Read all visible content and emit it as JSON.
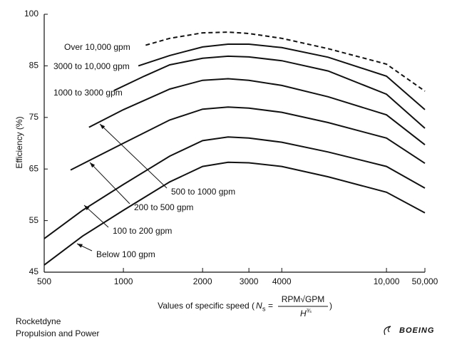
{
  "chart_data": {
    "type": "line",
    "ylabel": "Efficiency (%)",
    "xlabel": "Values of specific speed (",
    "formula": {
      "symbol": "N",
      "sub": "s",
      "eq": "=",
      "num": "RPM√GPM",
      "den": "H",
      "den_exp": "¾",
      "close": ")"
    },
    "xscale": "log",
    "xlim": [
      500,
      50000
    ],
    "xbreak": [
      14000,
      50000
    ],
    "xticks": [
      500,
      1000,
      2000,
      3000,
      4000,
      {
        "value": 10000,
        "label": "10,000"
      },
      {
        "value": 50000,
        "label": "50,000"
      }
    ],
    "yscale": "piecewise-even-ticks",
    "ylim": [
      45,
      100
    ],
    "yticks": [
      45,
      55,
      65,
      75,
      85,
      100
    ],
    "series": [
      {
        "name": "Below 100 gpm",
        "color": "#111111",
        "dash": false,
        "x": [
          500,
          700,
          1000,
          1500,
          2000,
          2500,
          3000,
          4000,
          6000,
          10000,
          50000
        ],
        "values": [
          46.4,
          52,
          57,
          62.5,
          65.5,
          66.3,
          66.2,
          65.5,
          63.5,
          60.5,
          56.5
        ]
      },
      {
        "name": "100 to 200 gpm",
        "color": "#111111",
        "dash": false,
        "x": [
          500,
          700,
          1000,
          1500,
          2000,
          2500,
          3000,
          4000,
          6000,
          10000,
          50000
        ],
        "values": [
          51.5,
          57,
          62,
          67.5,
          70.5,
          71.2,
          71,
          70.2,
          68.3,
          65.5,
          61.3
        ]
      },
      {
        "name": "200 to 500 gpm",
        "color": "#111111",
        "dash": false,
        "x": [
          630,
          1000,
          1500,
          2000,
          2500,
          3000,
          4000,
          6000,
          10000,
          50000
        ],
        "values": [
          64.8,
          70,
          74.5,
          76.6,
          77,
          76.8,
          76,
          74,
          71,
          66.1
        ]
      },
      {
        "name": "500 to 1000 gpm",
        "color": "#111111",
        "dash": false,
        "x": [
          740,
          1000,
          1500,
          2000,
          2500,
          3000,
          4000,
          6000,
          10000,
          50000
        ],
        "values": [
          73.1,
          76.5,
          80.5,
          82.2,
          82.5,
          82.2,
          81.2,
          79,
          75.5,
          69.7
        ]
      },
      {
        "name": "1000 to 3000 gpm",
        "color": "#111111",
        "dash": false,
        "x": [
          920,
          1200,
          1500,
          2000,
          2500,
          3000,
          4000,
          6000,
          10000,
          50000
        ],
        "values": [
          80.2,
          83,
          85.3,
          87.2,
          87.8,
          87.6,
          86.5,
          84,
          79.5,
          72.9
        ]
      },
      {
        "name": "3000 to 10,000 gpm",
        "color": "#111111",
        "dash": false,
        "x": [
          1140,
          1500,
          2000,
          2500,
          3000,
          4000,
          6000,
          10000,
          50000
        ],
        "values": [
          85,
          88,
          90.5,
          91.3,
          91.3,
          90.3,
          87.5,
          83,
          76.5
        ]
      },
      {
        "name": "Over 10,000 gpm",
        "color": "#111111",
        "dash": true,
        "x": [
          1215,
          1500,
          2000,
          2500,
          3000,
          4000,
          6000,
          10000,
          50000
        ],
        "values": [
          91,
          93,
          94.6,
          94.8,
          94.4,
          93,
          90,
          85.5,
          80.1
        ]
      }
    ],
    "source": [
      "Rocketdyne",
      "Propulsion and Power"
    ],
    "logo": "BOEING"
  }
}
